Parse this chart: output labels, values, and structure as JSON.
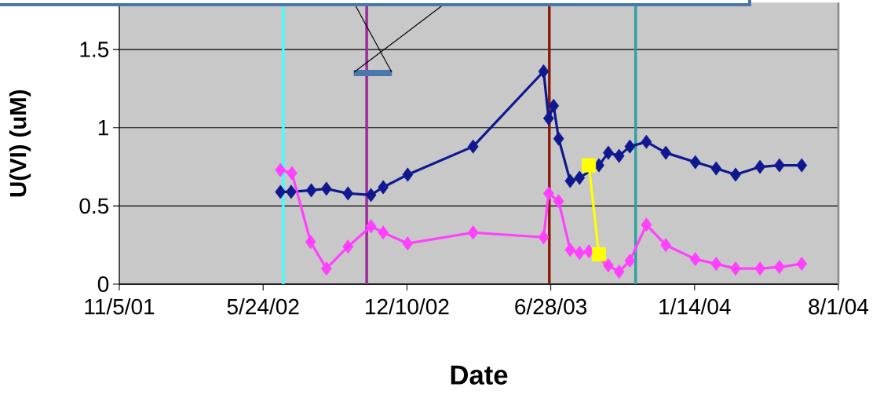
{
  "chart_data": {
    "type": "line",
    "xlabel": "Date",
    "ylabel": "U(VI) (uM)",
    "xlim": [
      "2001-11-05",
      "2004-08-01"
    ],
    "xticks": [
      {
        "value": "2001-11-05",
        "label": "11/5/01"
      },
      {
        "value": "2002-05-24",
        "label": "5/24/02"
      },
      {
        "value": "2002-12-10",
        "label": "12/10/02"
      },
      {
        "value": "2003-06-28",
        "label": "6/28/03"
      },
      {
        "value": "2004-01-14",
        "label": "1/14/04"
      },
      {
        "value": "2004-08-01",
        "label": "8/1/04"
      }
    ],
    "ylim": [
      0,
      1.8
    ],
    "yticks": [
      0,
      0.5,
      1,
      1.5
    ],
    "grid": "y",
    "ref_lines": [
      {
        "axis": "x",
        "value": "2002-06-21",
        "color": "#40ffff"
      },
      {
        "axis": "x",
        "value": "2002-10-15",
        "color": "#9a2a9a"
      },
      {
        "axis": "x",
        "value": "2003-06-26",
        "color": "#8b1a0a"
      },
      {
        "axis": "x",
        "value": "2003-10-24",
        "color": "#30a0a0"
      }
    ],
    "series": [
      {
        "color": "#10188f",
        "marker": "diamond",
        "x": [
          "2002-06-17",
          "2002-07-02",
          "2002-07-30",
          "2002-08-20",
          "2002-09-19",
          "2002-10-21",
          "2002-11-07",
          "2002-12-11",
          "2003-03-12",
          "2003-06-18",
          "2003-06-25",
          "2003-07-02",
          "2003-07-09",
          "2003-07-25",
          "2003-08-07",
          "2003-09-03",
          "2003-09-16",
          "2003-10-01",
          "2003-10-16",
          "2003-11-08",
          "2003-12-05",
          "2004-01-15",
          "2004-02-13",
          "2004-03-11",
          "2004-04-14",
          "2004-05-11",
          "2004-06-11"
        ],
        "values": [
          0.59,
          0.59,
          0.6,
          0.61,
          0.58,
          0.57,
          0.62,
          0.7,
          0.88,
          1.36,
          1.06,
          1.14,
          0.93,
          0.66,
          0.68,
          0.76,
          0.84,
          0.82,
          0.88,
          0.91,
          0.84,
          0.78,
          0.74,
          0.7,
          0.75,
          0.76,
          0.76
        ]
      },
      {
        "color": "#ff40ff",
        "marker": "diamond",
        "x": [
          "2002-06-17",
          "2002-07-03",
          "2002-07-29",
          "2002-08-20",
          "2002-09-19",
          "2002-10-21",
          "2002-11-07",
          "2002-12-11",
          "2003-03-12",
          "2003-06-18",
          "2003-06-25",
          "2003-07-09",
          "2003-07-25",
          "2003-08-07",
          "2003-08-20",
          "2003-09-16",
          "2003-10-01",
          "2003-10-16",
          "2003-11-08",
          "2003-12-05",
          "2004-01-15",
          "2004-02-13",
          "2004-03-11",
          "2004-04-14",
          "2004-05-11",
          "2004-06-11"
        ],
        "values": [
          0.73,
          0.71,
          0.27,
          0.1,
          0.24,
          0.37,
          0.33,
          0.26,
          0.33,
          0.3,
          0.58,
          0.53,
          0.22,
          0.2,
          0.21,
          0.12,
          0.08,
          0.15,
          0.38,
          0.25,
          0.16,
          0.13,
          0.1,
          0.1,
          0.11,
          0.13
        ]
      },
      {
        "color": "#ffff00",
        "marker": "square",
        "x": [
          "2003-08-20",
          "2003-09-03"
        ],
        "values": [
          0.76,
          0.19
        ]
      },
      {
        "color": "#4a78ac",
        "marker": "none",
        "x": [
          "2002-09-27",
          "2002-11-19"
        ],
        "values": [
          1.35,
          1.35
        ]
      }
    ]
  }
}
